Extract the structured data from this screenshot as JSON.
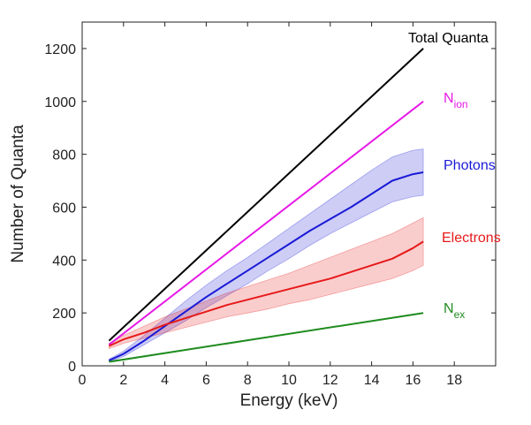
{
  "chart_data": {
    "type": "line",
    "title": "",
    "xlabel": "Energy (keV)",
    "ylabel": "Number of Quanta",
    "xlim": [
      0,
      20
    ],
    "ylim": [
      0,
      1300
    ],
    "xticks": [
      0,
      2,
      4,
      6,
      8,
      10,
      12,
      14,
      16,
      18
    ],
    "yticks": [
      0,
      200,
      400,
      600,
      800,
      1000,
      1200
    ],
    "grid": false,
    "legend": "inline labels at line ends",
    "series": [
      {
        "key": "total",
        "label_main": "Total Quanta",
        "label_sub": "",
        "color": "#000000",
        "x": [
          1.3,
          16.5
        ],
        "y": [
          95,
          1200
        ]
      },
      {
        "key": "nion",
        "label_main": "N",
        "label_sub": "ion",
        "color": "#e619e6",
        "x": [
          1.3,
          16.5
        ],
        "y": [
          80,
          1000
        ]
      },
      {
        "key": "photons",
        "label_main": "Photons",
        "label_sub": "",
        "color": "#1a1ad6",
        "x": [
          1.3,
          2,
          3,
          4,
          5,
          6,
          7,
          8,
          9,
          10,
          11,
          12,
          13,
          14,
          15,
          16,
          16.5
        ],
        "y": [
          20,
          45,
          95,
          150,
          205,
          260,
          310,
          360,
          410,
          460,
          510,
          555,
          600,
          650,
          700,
          725,
          732
        ],
        "band_upper": [
          25,
          55,
          115,
          180,
          245,
          305,
          360,
          410,
          465,
          520,
          575,
          630,
          685,
          740,
          790,
          815,
          820
        ],
        "band_lower": [
          15,
          35,
          80,
          125,
          170,
          220,
          265,
          310,
          360,
          405,
          455,
          500,
          540,
          580,
          620,
          640,
          645
        ]
      },
      {
        "key": "electrons",
        "label_main": "Electrons",
        "label_sub": "",
        "color": "#e61a1a",
        "x": [
          1.3,
          2,
          3,
          4,
          5,
          6,
          7,
          8,
          9,
          10,
          11,
          12,
          13,
          14,
          15,
          16,
          16.5
        ],
        "y": [
          75,
          100,
          125,
          155,
          180,
          205,
          230,
          250,
          270,
          290,
          310,
          330,
          355,
          380,
          405,
          445,
          470
        ],
        "band_upper": [
          85,
          115,
          150,
          185,
          215,
          245,
          275,
          300,
          325,
          350,
          380,
          410,
          440,
          470,
          500,
          540,
          560
        ],
        "band_lower": [
          65,
          85,
          105,
          125,
          145,
          165,
          185,
          200,
          215,
          235,
          250,
          270,
          290,
          310,
          330,
          360,
          380
        ]
      },
      {
        "key": "nex",
        "label_main": "N",
        "label_sub": "ex",
        "color": "#1e8c1e",
        "x": [
          1.3,
          16.5
        ],
        "y": [
          15,
          200
        ]
      }
    ]
  }
}
